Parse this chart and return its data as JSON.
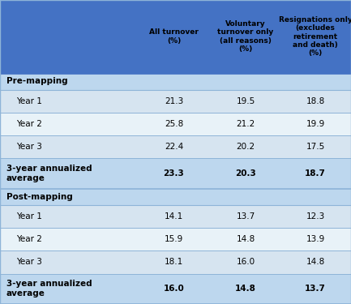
{
  "header_bg": "#4472C4",
  "section_bg": "#BDD7EE",
  "row_bg_odd": "#D6E4F0",
  "row_bg_even": "#E8F2F8",
  "avg_bg": "#BDD7EE",
  "border_color_heavy": "#4472C4",
  "border_color_light": "#8EB4D8",
  "col_headers": [
    "All turnover\n(%)",
    "Voluntary\nturnover only\n(all reasons)\n(%)",
    "Resignations only\n(excludes\nretirement\nand death)\n(%)"
  ],
  "sections": [
    {
      "section_label": "Pre-mapping",
      "rows": [
        {
          "label": "Year 1",
          "values": [
            "21.3",
            "19.5",
            "18.8"
          ],
          "is_avg": false
        },
        {
          "label": "Year 2",
          "values": [
            "25.8",
            "21.2",
            "19.9"
          ],
          "is_avg": false
        },
        {
          "label": "Year 3",
          "values": [
            "22.4",
            "20.2",
            "17.5"
          ],
          "is_avg": false
        },
        {
          "label": "3-year annualized\naverage",
          "values": [
            "23.3",
            "20.3",
            "18.7"
          ],
          "is_avg": true
        }
      ]
    },
    {
      "section_label": "Post-mapping",
      "rows": [
        {
          "label": "Year 1",
          "values": [
            "14.1",
            "13.7",
            "12.3"
          ],
          "is_avg": false
        },
        {
          "label": "Year 2",
          "values": [
            "15.9",
            "14.8",
            "13.9"
          ],
          "is_avg": false
        },
        {
          "label": "Year 3",
          "values": [
            "18.1",
            "16.0",
            "14.8"
          ],
          "is_avg": false
        },
        {
          "label": "3-year annualized\naverage",
          "values": [
            "16.0",
            "14.8",
            "13.7"
          ],
          "is_avg": true
        }
      ]
    }
  ],
  "figsize": [
    4.33,
    3.75
  ],
  "dpi": 100
}
